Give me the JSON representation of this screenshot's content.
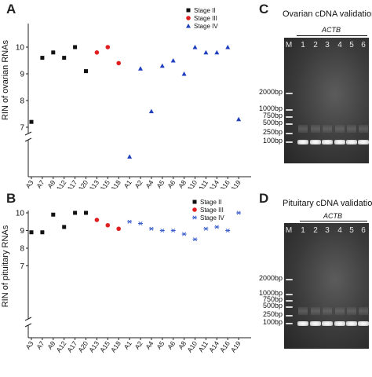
{
  "panels": {
    "A": "A",
    "B": "B",
    "C": "C",
    "D": "D"
  },
  "chart_data": [
    {
      "type": "scatter",
      "ylabel": "RIN of ovarian RNAs",
      "ylim": [
        6,
        10.5
      ],
      "yticks": [
        7,
        8,
        9,
        10
      ],
      "axis_break": true,
      "categories": [
        "A3",
        "A7",
        "A9",
        "A12",
        "A17",
        "A20",
        "A13",
        "A15",
        "A18",
        "A1",
        "A2",
        "A4",
        "A5",
        "A6",
        "A8",
        "A10",
        "A11",
        "A14",
        "A16",
        "A19"
      ],
      "series": [
        {
          "name": "Stage II",
          "marker": "square",
          "color": "#111111",
          "x": [
            "A3",
            "A7",
            "A9",
            "A12",
            "A17",
            "A20"
          ],
          "values": [
            7.2,
            9.6,
            9.8,
            9.6,
            10.0,
            9.1
          ]
        },
        {
          "name": "Stage III",
          "marker": "circle",
          "color": "#e02020",
          "x": [
            "A13",
            "A15",
            "A18"
          ],
          "values": [
            9.8,
            10.0,
            9.4
          ]
        },
        {
          "name": "Stage IV",
          "marker": "triangle",
          "color": "#1f3fbf",
          "x": [
            "A1",
            "A2",
            "A4",
            "A5",
            "A6",
            "A8",
            "A10",
            "A11",
            "A14",
            "A16",
            "A19"
          ],
          "values": [
            5.9,
            9.2,
            7.6,
            9.3,
            9.5,
            9.0,
            10.0,
            9.8,
            9.8,
            10.0,
            7.3
          ]
        }
      ],
      "legend_position": "top-right"
    },
    {
      "type": "scatter",
      "ylabel": "RIN of pituitary RNAs",
      "ylim": [
        6,
        10.5
      ],
      "yticks": [
        7,
        8,
        9,
        10
      ],
      "axis_break": true,
      "categories": [
        "A3",
        "A7",
        "A9",
        "A12",
        "A17",
        "A20",
        "A13",
        "A15",
        "A18",
        "A1",
        "A2",
        "A4",
        "A5",
        "A6",
        "A8",
        "A10",
        "A11",
        "A14",
        "A16",
        "A19"
      ],
      "series": [
        {
          "name": "Stage II",
          "marker": "square",
          "color": "#111111",
          "x": [
            "A3",
            "A7",
            "A9",
            "A12",
            "A17",
            "A20"
          ],
          "values": [
            8.9,
            8.9,
            9.9,
            9.2,
            10.0,
            10.0
          ]
        },
        {
          "name": "Stage III",
          "marker": "circle",
          "color": "#e02020",
          "x": [
            "A13",
            "A15",
            "A18"
          ],
          "values": [
            9.6,
            9.3,
            9.1
          ]
        },
        {
          "name": "Stage IV",
          "marker": "star",
          "color": "#3a5fcd",
          "x": [
            "A1",
            "A2",
            "A4",
            "A5",
            "A6",
            "A8",
            "A10",
            "A11",
            "A14",
            "A16",
            "A19"
          ],
          "values": [
            9.5,
            9.4,
            9.1,
            9.0,
            9.0,
            8.8,
            8.5,
            9.1,
            9.2,
            9.0,
            10.0
          ]
        }
      ],
      "legend_position": "top-right"
    }
  ],
  "gels": [
    {
      "title": "Ovarian cDNA validation",
      "gene": "ACTB",
      "lanes": [
        "M",
        "1",
        "2",
        "3",
        "4",
        "5",
        "6"
      ],
      "markers": [
        "2000bp",
        "1000bp",
        "750bp",
        "500bp",
        "250bp",
        "100bp"
      ]
    },
    {
      "title": "Pituitary cDNA validation",
      "gene": "ACTB",
      "lanes": [
        "M",
        "1",
        "2",
        "3",
        "4",
        "5",
        "6"
      ],
      "markers": [
        "2000bp",
        "1000bp",
        "750bp",
        "500bp",
        "250bp",
        "100bp"
      ]
    }
  ]
}
